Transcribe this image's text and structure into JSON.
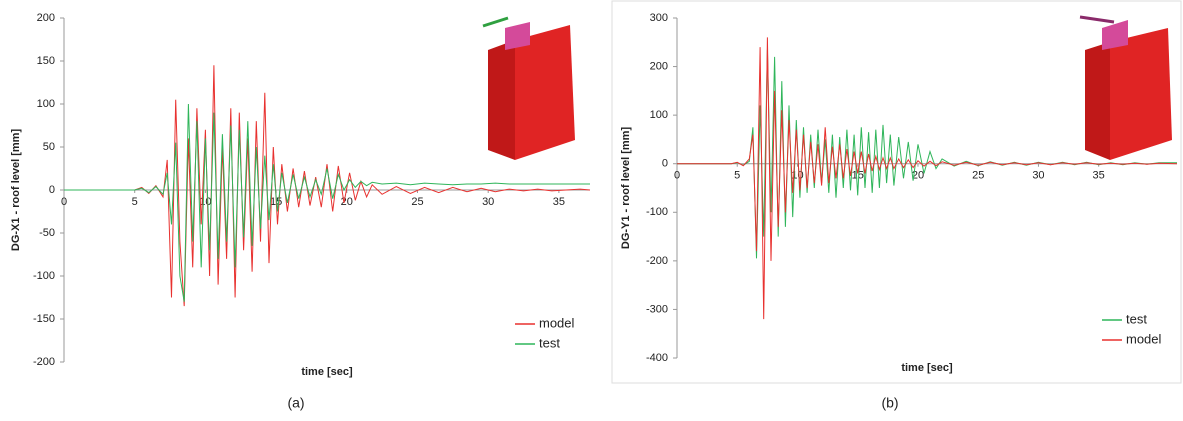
{
  "chart_data": [
    {
      "type": "line",
      "y_label": "DG-X1 - roof level [mm]",
      "x_label": "time [sec]",
      "caption": "(a)",
      "xlim": [
        0,
        37.2
      ],
      "xticks": [
        0,
        5,
        10,
        15,
        20,
        25,
        30,
        35
      ],
      "ylim": [
        -200,
        200
      ],
      "yticks": [
        -200,
        -150,
        -100,
        -50,
        0,
        50,
        100,
        150,
        200
      ],
      "grid": false,
      "legend": "lower right",
      "x": [
        0,
        5,
        5.5,
        6,
        6.5,
        7,
        7.3,
        7.6,
        7.9,
        8.2,
        8.5,
        8.8,
        9.1,
        9.4,
        9.7,
        10,
        10.3,
        10.6,
        10.9,
        11.2,
        11.5,
        11.8,
        12.1,
        12.4,
        12.7,
        13,
        13.3,
        13.6,
        13.9,
        14.2,
        14.5,
        14.8,
        15.1,
        15.4,
        15.8,
        16.2,
        16.6,
        17,
        17.4,
        17.8,
        18.2,
        18.6,
        19,
        19.4,
        19.8,
        20.2,
        20.6,
        21,
        21.4,
        21.8,
        22.5,
        23.5,
        24.5,
        25.5,
        26.5,
        27.5,
        28.5,
        29.5,
        30.5,
        31.5,
        32.5,
        33.5,
        34.5,
        35.5,
        36.5,
        37.2
      ],
      "series": [
        {
          "name": "model",
          "color": "#e8312f",
          "values": [
            0,
            0,
            3,
            -4,
            5,
            -8,
            35,
            -125,
            105,
            -60,
            -135,
            60,
            -90,
            95,
            -40,
            70,
            -100,
            145,
            -110,
            50,
            -80,
            95,
            -125,
            90,
            -70,
            60,
            -95,
            80,
            -60,
            113,
            -85,
            50,
            -40,
            30,
            -25,
            25,
            -20,
            22,
            -18,
            15,
            -20,
            30,
            -25,
            28,
            -15,
            20,
            -12,
            10,
            -8,
            6,
            -5,
            4,
            -4,
            3,
            -3,
            3,
            -2,
            2,
            -2,
            1,
            -1,
            1,
            -1,
            0,
            1,
            0
          ]
        },
        {
          "name": "test",
          "color": "#2fb55a",
          "values": [
            0,
            0,
            2,
            -3,
            4,
            -5,
            20,
            -40,
            55,
            -100,
            -130,
            100,
            -60,
            80,
            -90,
            60,
            -70,
            90,
            -80,
            65,
            -60,
            75,
            -90,
            70,
            -55,
            80,
            -65,
            50,
            -45,
            40,
            -35,
            30,
            -25,
            20,
            -15,
            18,
            -10,
            15,
            -8,
            12,
            -5,
            25,
            -10,
            18,
            0,
            12,
            3,
            10,
            5,
            9,
            7,
            8,
            6,
            8,
            7,
            6,
            7,
            7,
            8,
            7,
            7,
            7,
            7,
            7,
            7,
            7
          ]
        }
      ]
    },
    {
      "type": "line",
      "y_label": "DG-Y1 - roof level [mm]",
      "x_label": "time [sec]",
      "caption": "(b)",
      "xlim": [
        0,
        41.5
      ],
      "xticks": [
        0,
        5,
        10,
        15,
        20,
        25,
        30,
        35
      ],
      "ylim": [
        -400,
        300
      ],
      "yticks": [
        -400,
        -300,
        -200,
        -100,
        0,
        100,
        200,
        300
      ],
      "grid": false,
      "legend": "lower right",
      "x": [
        0,
        4.5,
        5,
        5.5,
        6,
        6.3,
        6.6,
        6.9,
        7.2,
        7.5,
        7.8,
        8.1,
        8.4,
        8.7,
        9,
        9.3,
        9.6,
        9.9,
        10.2,
        10.5,
        10.8,
        11.1,
        11.4,
        11.7,
        12,
        12.3,
        12.6,
        12.9,
        13.2,
        13.5,
        13.8,
        14.1,
        14.4,
        14.7,
        15,
        15.3,
        15.6,
        15.9,
        16.2,
        16.5,
        16.8,
        17.1,
        17.4,
        17.7,
        18,
        18.4,
        18.8,
        19.2,
        19.6,
        20,
        20.5,
        21,
        21.5,
        22,
        23,
        24,
        25,
        26,
        27,
        28,
        29,
        30,
        31,
        32,
        33,
        34,
        35,
        36,
        37,
        38,
        39,
        40,
        41.5
      ],
      "series": [
        {
          "name": "test",
          "color": "#2fb55a",
          "values": [
            0,
            0,
            2,
            -3,
            5,
            75,
            -195,
            120,
            -150,
            235,
            -100,
            220,
            -150,
            170,
            -130,
            120,
            -110,
            90,
            -70,
            75,
            -60,
            60,
            -50,
            70,
            -40,
            50,
            -60,
            60,
            -70,
            55,
            -50,
            70,
            -55,
            60,
            -65,
            75,
            -50,
            65,
            -60,
            70,
            -50,
            80,
            -40,
            60,
            -45,
            55,
            -30,
            45,
            -35,
            40,
            -20,
            25,
            -10,
            10,
            -5,
            5,
            -4,
            4,
            -3,
            3,
            -3,
            3,
            -2,
            3,
            -2,
            3,
            -2,
            2,
            -2,
            2,
            -1,
            2,
            2
          ]
        },
        {
          "name": "model",
          "color": "#e8312f",
          "values": [
            0,
            0,
            3,
            -4,
            10,
            60,
            -180,
            240,
            -320,
            260,
            -200,
            150,
            -130,
            110,
            -100,
            90,
            -60,
            70,
            -55,
            60,
            -50,
            45,
            -40,
            40,
            -45,
            75,
            -40,
            35,
            -30,
            40,
            -30,
            30,
            -25,
            25,
            -20,
            25,
            -20,
            20,
            -15,
            15,
            -12,
            12,
            -10,
            12,
            -10,
            10,
            -8,
            8,
            -8,
            6,
            -5,
            5,
            -4,
            4,
            -3,
            3,
            -3,
            3,
            -2,
            2,
            -2,
            2,
            -2,
            2,
            -1,
            2,
            -1,
            1,
            -1,
            1,
            -1,
            1,
            0
          ]
        }
      ]
    }
  ]
}
